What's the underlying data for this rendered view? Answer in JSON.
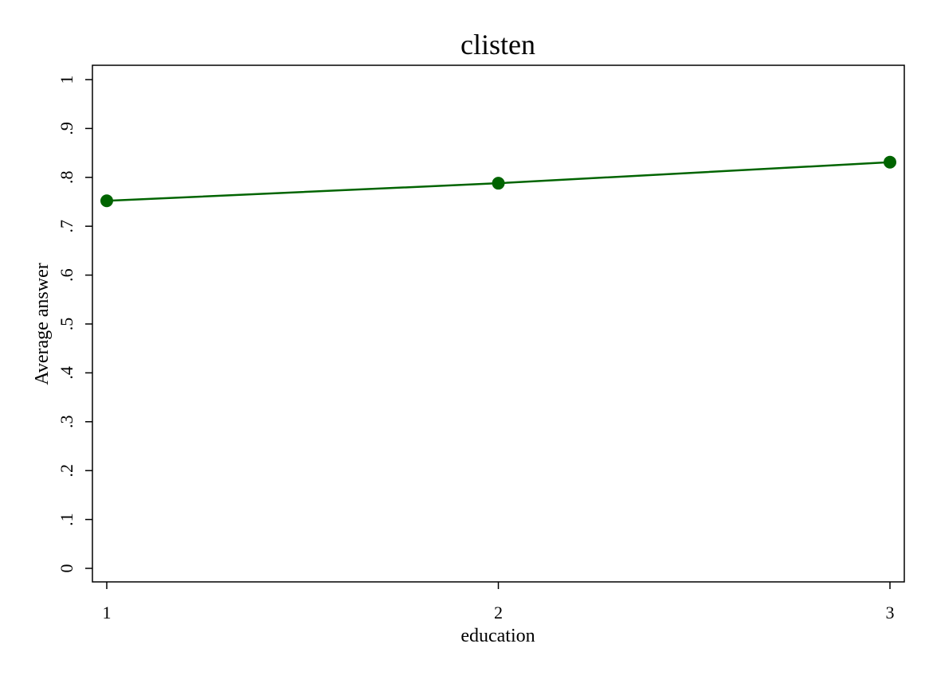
{
  "chart_data": {
    "type": "line",
    "title": "clisten",
    "xlabel": "education",
    "ylabel": "Average answer",
    "x": [
      1,
      2,
      3
    ],
    "x_ticks": [
      "1",
      "2",
      "3"
    ],
    "y_ticks": [
      "0",
      ".1",
      ".2",
      ".3",
      ".4",
      ".5",
      ".6",
      ".7",
      ".8",
      ".9",
      "1"
    ],
    "y_tick_values": [
      0,
      0.1,
      0.2,
      0.3,
      0.4,
      0.5,
      0.6,
      0.7,
      0.8,
      0.9,
      1
    ],
    "xlim": [
      1,
      3
    ],
    "ylim": [
      0,
      1
    ],
    "grid": false,
    "series": [
      {
        "values": [
          0.752,
          0.788,
          0.831
        ],
        "color": "#006400",
        "marker": "circle"
      }
    ]
  }
}
